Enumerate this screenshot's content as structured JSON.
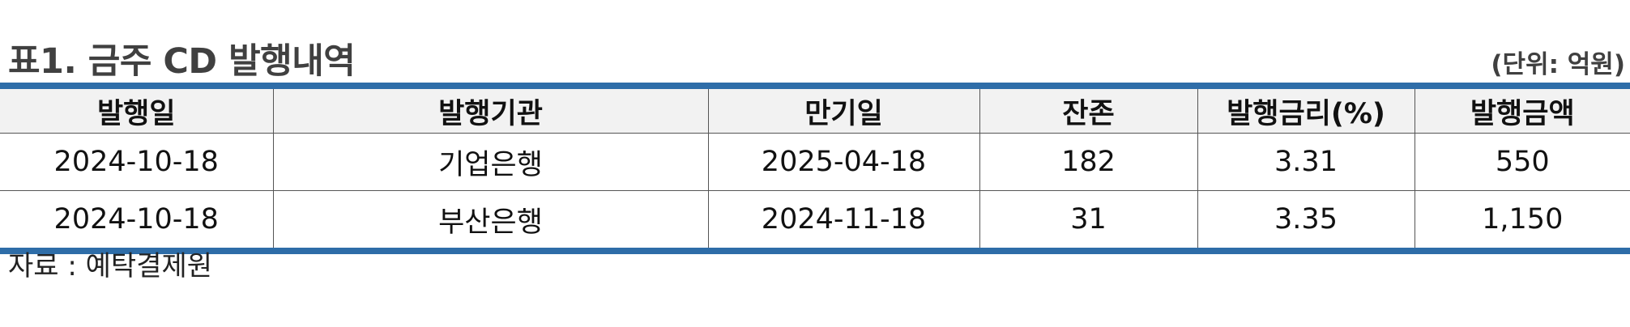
{
  "header": {
    "title": "표1. 금주 CD 발행내역",
    "unit": "(단위: 억원)"
  },
  "table": {
    "columns": [
      "발행일",
      "발행기관",
      "만기일",
      "잔존",
      "발행금리(%)",
      "발행금액"
    ],
    "rows": [
      [
        "2024-10-18",
        "기업은행",
        "2025-04-18",
        "182",
        "3.31",
        "550"
      ],
      [
        "2024-10-18",
        "부산은행",
        "2024-11-18",
        "31",
        "3.35",
        "1,150"
      ]
    ]
  },
  "footer": {
    "source": "자료 : 예탁결제원"
  },
  "colors": {
    "accent_rule": "#2e6da8",
    "header_background": "#f2f2f2"
  }
}
